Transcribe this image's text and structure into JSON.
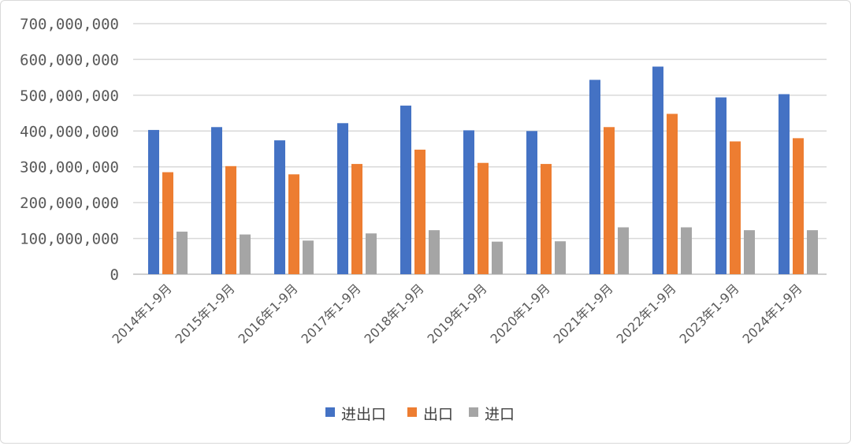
{
  "chart_data": {
    "type": "bar",
    "categories": [
      "2014年1-9月",
      "2015年1-9月",
      "2016年1-9月",
      "2017年1-9月",
      "2018年1-9月",
      "2019年1-9月",
      "2020年1-9月",
      "2021年1-9月",
      "2022年1-9月",
      "2023年1-9月",
      "2024年1-9月"
    ],
    "series": [
      {
        "name": "进出口",
        "color": "#4472C4",
        "values": [
          403000000,
          411000000,
          374000000,
          422000000,
          471000000,
          402000000,
          400000000,
          543000000,
          580000000,
          494000000,
          503000000
        ]
      },
      {
        "name": "出口",
        "color": "#ED7D31",
        "values": [
          285000000,
          302000000,
          279000000,
          308000000,
          348000000,
          311000000,
          308000000,
          411000000,
          448000000,
          371000000,
          380000000
        ]
      },
      {
        "name": "进口",
        "color": "#A5A5A5",
        "values": [
          119000000,
          111000000,
          94000000,
          114000000,
          123000000,
          91000000,
          92000000,
          131000000,
          131000000,
          123000000,
          123000000
        ]
      }
    ],
    "y_ticks": [
      "0",
      "100,000,000",
      "200,000,000",
      "300,000,000",
      "400,000,000",
      "500,000,000",
      "600,000,000",
      "700,000,000"
    ],
    "ylim": [
      0,
      700000000
    ],
    "grid": true,
    "legend": "bottom-center",
    "title": "",
    "xlabel": "",
    "ylabel": ""
  }
}
